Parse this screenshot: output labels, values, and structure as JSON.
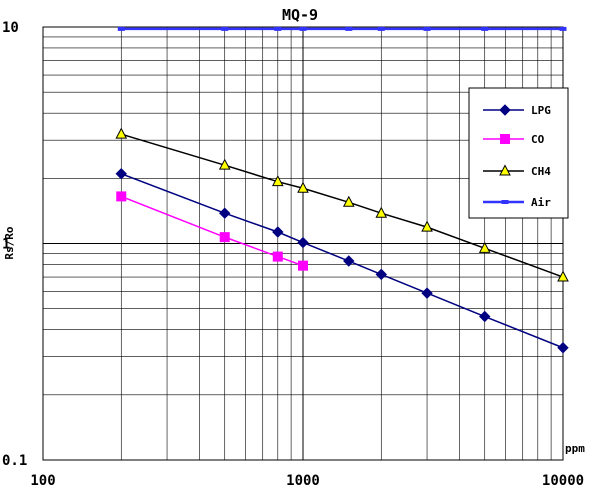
{
  "chart_data": {
    "type": "line",
    "title": "MQ-9",
    "xlabel": "ppm",
    "ylabel": "Rs/Ro",
    "x_scale": "log",
    "y_scale": "log",
    "xlim": [
      100,
      10000
    ],
    "ylim": [
      0.1,
      10
    ],
    "x_tick_labels": [
      "100",
      "1000",
      "10000"
    ],
    "y_tick_labels": [
      "0.1",
      "1",
      "10"
    ],
    "grid": true,
    "legend_position": "right",
    "series": [
      {
        "name": "LPG",
        "color": "#000080",
        "line_color": "#000080",
        "marker": "diamond",
        "x": [
          200,
          500,
          800,
          1000,
          1500,
          2000,
          3000,
          5000,
          10000
        ],
        "y": [
          2.1,
          1.38,
          1.13,
          1.01,
          0.83,
          0.72,
          0.59,
          0.46,
          0.33
        ]
      },
      {
        "name": "CO",
        "color": "#ff00ff",
        "line_color": "#ff00ff",
        "marker": "square",
        "x": [
          200,
          500,
          800,
          1000
        ],
        "y": [
          1.65,
          1.07,
          0.87,
          0.79
        ]
      },
      {
        "name": "CH4",
        "color": "#ffff00",
        "line_color": "#000000",
        "marker": "triangle",
        "x": [
          200,
          500,
          800,
          1000,
          1500,
          2000,
          3000,
          5000,
          10000
        ],
        "y": [
          3.2,
          2.3,
          1.93,
          1.8,
          1.55,
          1.38,
          1.19,
          0.95,
          0.7
        ]
      },
      {
        "name": "Air",
        "color": "#3333ff",
        "line_color": "#3333ff",
        "marker": "dash",
        "x": [
          200,
          500,
          800,
          1000,
          1500,
          2000,
          3000,
          5000,
          10000
        ],
        "y": [
          9.8,
          9.8,
          9.8,
          9.8,
          9.8,
          9.8,
          9.8,
          9.8,
          9.8
        ]
      }
    ]
  }
}
